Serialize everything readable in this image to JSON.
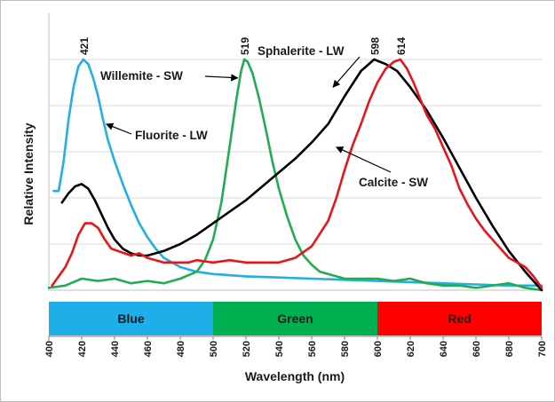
{
  "chart_data": {
    "type": "line",
    "title": "",
    "xlabel": "Wavelength (nm)",
    "ylabel": "Relative Intensity",
    "xlim": [
      400,
      700
    ],
    "ylim": [
      0,
      1.0
    ],
    "x_ticks": [
      400,
      420,
      440,
      460,
      480,
      500,
      520,
      540,
      560,
      580,
      600,
      620,
      640,
      660,
      680,
      700
    ],
    "y_tick_labels_shown": false,
    "grid": "horizontal",
    "legend": "none",
    "series": [
      {
        "color": "#23aee6",
        "points": [
          [
            403,
            0.43
          ],
          [
            406,
            0.43
          ],
          [
            409,
            0.56
          ],
          [
            412,
            0.74
          ],
          [
            415,
            0.88
          ],
          [
            418,
            0.97
          ],
          [
            421,
            1.0
          ],
          [
            424,
            0.98
          ],
          [
            427,
            0.92
          ],
          [
            430,
            0.84
          ],
          [
            433,
            0.74
          ],
          [
            436,
            0.65
          ],
          [
            440,
            0.56
          ],
          [
            445,
            0.46
          ],
          [
            450,
            0.37
          ],
          [
            455,
            0.29
          ],
          [
            460,
            0.23
          ],
          [
            465,
            0.18
          ],
          [
            470,
            0.14
          ],
          [
            475,
            0.12
          ],
          [
            480,
            0.1
          ],
          [
            490,
            0.08
          ],
          [
            500,
            0.07
          ],
          [
            520,
            0.06
          ],
          [
            540,
            0.055
          ],
          [
            560,
            0.05
          ],
          [
            580,
            0.045
          ],
          [
            600,
            0.04
          ],
          [
            620,
            0.035
          ],
          [
            640,
            0.03
          ],
          [
            660,
            0.025
          ],
          [
            680,
            0.02
          ],
          [
            700,
            0.02
          ]
        ]
      },
      {
        "color": "#1fad4f",
        "points": [
          [
            400,
            0.01
          ],
          [
            410,
            0.02
          ],
          [
            420,
            0.05
          ],
          [
            430,
            0.04
          ],
          [
            440,
            0.05
          ],
          [
            450,
            0.03
          ],
          [
            460,
            0.04
          ],
          [
            470,
            0.03
          ],
          [
            480,
            0.05
          ],
          [
            490,
            0.08
          ],
          [
            495,
            0.13
          ],
          [
            500,
            0.22
          ],
          [
            505,
            0.38
          ],
          [
            510,
            0.62
          ],
          [
            514,
            0.82
          ],
          [
            517,
            0.95
          ],
          [
            519,
            1.0
          ],
          [
            521,
            0.99
          ],
          [
            524,
            0.94
          ],
          [
            528,
            0.83
          ],
          [
            532,
            0.7
          ],
          [
            536,
            0.56
          ],
          [
            540,
            0.44
          ],
          [
            545,
            0.32
          ],
          [
            550,
            0.22
          ],
          [
            555,
            0.15
          ],
          [
            560,
            0.11
          ],
          [
            565,
            0.08
          ],
          [
            570,
            0.07
          ],
          [
            580,
            0.05
          ],
          [
            590,
            0.05
          ],
          [
            600,
            0.05
          ],
          [
            610,
            0.04
          ],
          [
            620,
            0.05
          ],
          [
            630,
            0.03
          ],
          [
            640,
            0.02
          ],
          [
            650,
            0.02
          ],
          [
            660,
            0.01
          ],
          [
            670,
            0.02
          ],
          [
            680,
            0.03
          ],
          [
            690,
            0.01
          ],
          [
            700,
            0.0
          ]
        ]
      },
      {
        "color": "#000000",
        "points": [
          [
            408,
            0.38
          ],
          [
            412,
            0.42
          ],
          [
            416,
            0.45
          ],
          [
            420,
            0.46
          ],
          [
            424,
            0.44
          ],
          [
            428,
            0.39
          ],
          [
            432,
            0.33
          ],
          [
            436,
            0.27
          ],
          [
            440,
            0.22
          ],
          [
            445,
            0.18
          ],
          [
            450,
            0.16
          ],
          [
            455,
            0.15
          ],
          [
            460,
            0.15
          ],
          [
            465,
            0.16
          ],
          [
            470,
            0.17
          ],
          [
            480,
            0.2
          ],
          [
            490,
            0.24
          ],
          [
            500,
            0.29
          ],
          [
            510,
            0.34
          ],
          [
            520,
            0.39
          ],
          [
            530,
            0.45
          ],
          [
            540,
            0.51
          ],
          [
            550,
            0.57
          ],
          [
            560,
            0.64
          ],
          [
            570,
            0.72
          ],
          [
            580,
            0.84
          ],
          [
            590,
            0.95
          ],
          [
            598,
            1.0
          ],
          [
            605,
            0.98
          ],
          [
            612,
            0.95
          ],
          [
            620,
            0.88
          ],
          [
            630,
            0.78
          ],
          [
            640,
            0.66
          ],
          [
            650,
            0.53
          ],
          [
            660,
            0.4
          ],
          [
            670,
            0.28
          ],
          [
            680,
            0.17
          ],
          [
            690,
            0.08
          ],
          [
            700,
            0.0
          ]
        ]
      },
      {
        "color": "#e8151b",
        "points": [
          [
            402,
            0.02
          ],
          [
            406,
            0.06
          ],
          [
            410,
            0.1
          ],
          [
            414,
            0.16
          ],
          [
            418,
            0.24
          ],
          [
            422,
            0.29
          ],
          [
            426,
            0.29
          ],
          [
            430,
            0.27
          ],
          [
            434,
            0.22
          ],
          [
            438,
            0.18
          ],
          [
            442,
            0.17
          ],
          [
            446,
            0.16
          ],
          [
            450,
            0.15
          ],
          [
            455,
            0.16
          ],
          [
            460,
            0.14
          ],
          [
            465,
            0.13
          ],
          [
            470,
            0.12
          ],
          [
            475,
            0.12
          ],
          [
            480,
            0.12
          ],
          [
            485,
            0.12
          ],
          [
            490,
            0.13
          ],
          [
            500,
            0.12
          ],
          [
            510,
            0.13
          ],
          [
            520,
            0.12
          ],
          [
            530,
            0.12
          ],
          [
            540,
            0.12
          ],
          [
            550,
            0.14
          ],
          [
            560,
            0.19
          ],
          [
            570,
            0.3
          ],
          [
            575,
            0.4
          ],
          [
            580,
            0.52
          ],
          [
            585,
            0.63
          ],
          [
            590,
            0.72
          ],
          [
            595,
            0.82
          ],
          [
            600,
            0.9
          ],
          [
            605,
            0.96
          ],
          [
            610,
            0.99
          ],
          [
            614,
            1.0
          ],
          [
            618,
            0.96
          ],
          [
            622,
            0.9
          ],
          [
            626,
            0.83
          ],
          [
            630,
            0.76
          ],
          [
            635,
            0.7
          ],
          [
            640,
            0.62
          ],
          [
            645,
            0.54
          ],
          [
            650,
            0.44
          ],
          [
            655,
            0.37
          ],
          [
            660,
            0.31
          ],
          [
            665,
            0.26
          ],
          [
            670,
            0.22
          ],
          [
            675,
            0.18
          ],
          [
            680,
            0.14
          ],
          [
            685,
            0.12
          ],
          [
            690,
            0.1
          ],
          [
            695,
            0.06
          ],
          [
            700,
            0.01
          ]
        ]
      }
    ],
    "peak_labels": [
      {
        "text": "421",
        "x": 421,
        "y": 1.0
      },
      {
        "text": "519",
        "x": 519,
        "y": 1.0
      },
      {
        "text": "598",
        "x": 598,
        "y": 1.0
      },
      {
        "text": "614",
        "x": 614,
        "y": 1.0
      }
    ],
    "annotations": [
      {
        "text": "Willemite - SW",
        "arrow_to": [
          515,
          0.92
        ]
      },
      {
        "text": "Sphalerite - LW",
        "arrow_to": [
          573,
          0.88
        ]
      },
      {
        "text": "Fluorite - LW",
        "arrow_to": [
          435,
          0.72
        ]
      },
      {
        "text": "Calcite - SW",
        "arrow_to": [
          575,
          0.62
        ]
      }
    ],
    "color_bands": [
      {
        "label": "Blue",
        "from": 400,
        "to": 500,
        "color": "#1eaee8"
      },
      {
        "label": "Green",
        "from": 500,
        "to": 600,
        "color": "#00b050"
      },
      {
        "label": "Red",
        "from": 600,
        "to": 700,
        "color": "#ff0000"
      }
    ]
  }
}
